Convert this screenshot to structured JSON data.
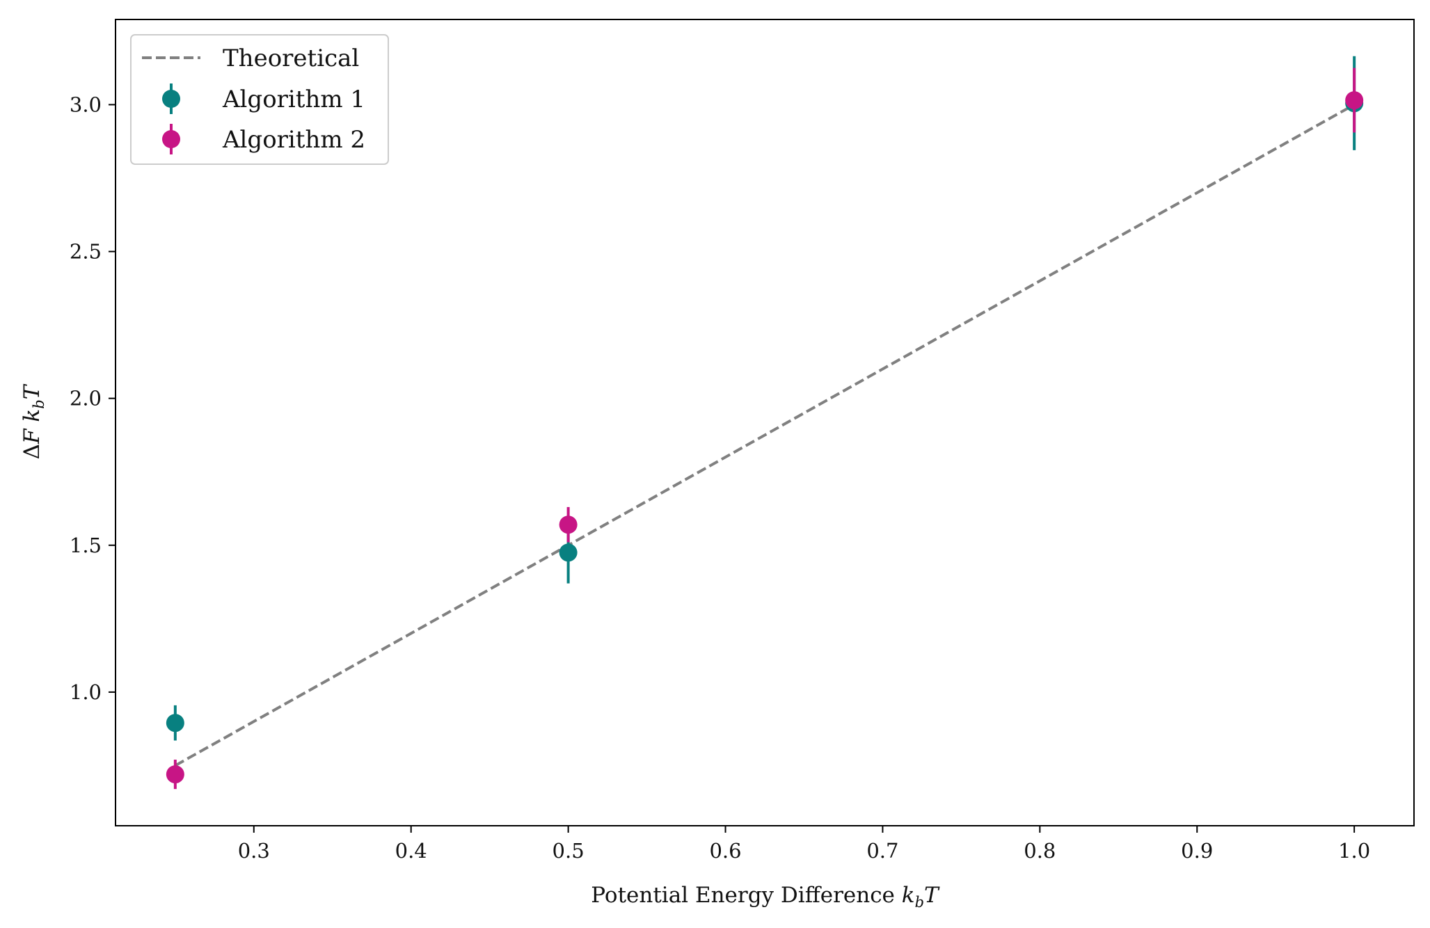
{
  "chart_data": {
    "type": "scatter",
    "xlabel": "Potential Energy Difference k_bT",
    "ylabel": "ΔF k_bT",
    "xlim": [
      0.212,
      1.038
    ],
    "ylim": [
      0.545,
      3.29
    ],
    "xticks": [
      0.3,
      0.4,
      0.5,
      0.6,
      0.7,
      0.8,
      0.9,
      1.0
    ],
    "xtick_labels": [
      "0.3",
      "0.4",
      "0.5",
      "0.6",
      "0.7",
      "0.8",
      "0.9",
      "1.0"
    ],
    "yticks": [
      1.0,
      1.5,
      2.0,
      2.5,
      3.0
    ],
    "ytick_labels": [
      "1.0",
      "1.5",
      "2.0",
      "2.5",
      "3.0"
    ],
    "grid": false,
    "legend_position": "top-left",
    "line": {
      "name": "Theoretical",
      "style": "dashed",
      "color": "#808080",
      "x": [
        0.25,
        1.0
      ],
      "y": [
        0.75,
        3.0
      ]
    },
    "series": [
      {
        "name": "Algorithm 1",
        "color": "#088080",
        "x": [
          0.25,
          0.5,
          1.0
        ],
        "y": [
          0.895,
          1.475,
          3.005
        ],
        "yerr": [
          0.06,
          0.105,
          0.16
        ]
      },
      {
        "name": "Algorithm 2",
        "color": "#C71585",
        "x": [
          0.25,
          0.5,
          1.0
        ],
        "y": [
          0.72,
          1.57,
          3.015
        ],
        "yerr": [
          0.05,
          0.06,
          0.11
        ]
      }
    ]
  }
}
